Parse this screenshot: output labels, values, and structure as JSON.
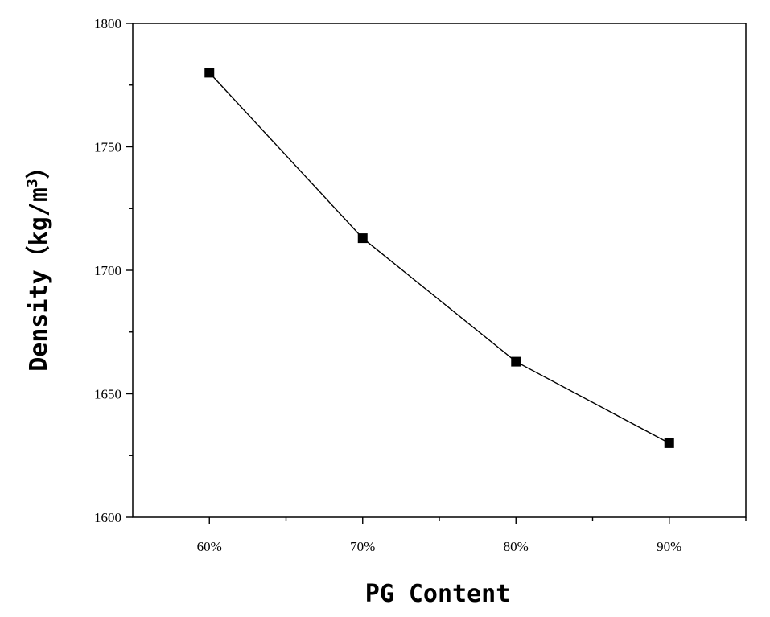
{
  "chart_data": {
    "type": "line",
    "x": [
      "60%",
      "70%",
      "80%",
      "90%"
    ],
    "series": [
      {
        "values": [
          1780,
          1713,
          1663,
          1630
        ],
        "marker": "square",
        "color": "#000000"
      }
    ],
    "xlabel": "PG Content",
    "ylabel": {
      "prefix": "Density（kg/m",
      "superscript": "3",
      "suffix": "）"
    },
    "ylim": [
      1600,
      1800
    ],
    "yticks": [
      1600,
      1650,
      1700,
      1750,
      1800
    ],
    "yminor_step": 25,
    "xlim": [
      55,
      95
    ],
    "x_positions": [
      60,
      70,
      80,
      90
    ],
    "xminor": [
      65,
      75,
      85,
      95
    ],
    "grid": false
  }
}
